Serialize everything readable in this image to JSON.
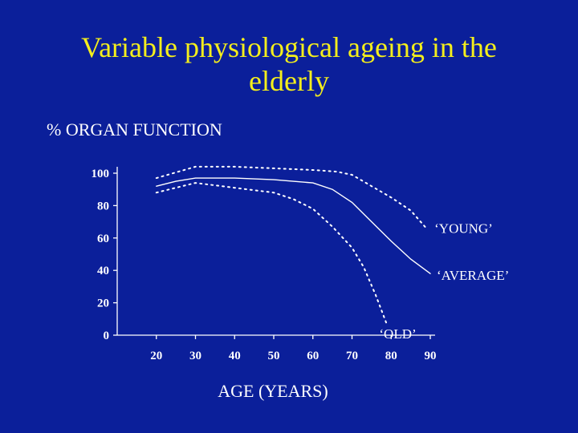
{
  "slide": {
    "title_line1": "Variable physiological ageing in the",
    "title_line2": "elderly"
  },
  "colors": {
    "background": "#0b1f9a",
    "title": "#f4ee1c",
    "text": "#ffffff",
    "lines": "#ffffff"
  },
  "chart_data": {
    "type": "line",
    "title": "",
    "xlabel": "AGE (YEARS)",
    "ylabel": "% ORGAN FUNCTION",
    "xlim": [
      10,
      90
    ],
    "ylim": [
      0,
      100
    ],
    "x_ticks": [
      20,
      30,
      40,
      50,
      60,
      70,
      80,
      90
    ],
    "y_ticks": [
      0,
      20,
      40,
      60,
      80,
      100
    ],
    "grid": false,
    "legend": "none",
    "series": [
      {
        "name": "‘YOUNG’",
        "line_style": "dotted",
        "x": [
          20,
          30,
          40,
          50,
          60,
          66,
          70,
          75,
          80,
          85,
          89
        ],
        "y": [
          97,
          104,
          104,
          103,
          102,
          101,
          99,
          92,
          85,
          77,
          66
        ]
      },
      {
        "name": "‘AVERAGE’",
        "line_style": "solid",
        "x": [
          20,
          25,
          30,
          40,
          50,
          60,
          65,
          70,
          75,
          80,
          85,
          90
        ],
        "y": [
          92,
          95,
          97,
          97,
          96,
          94,
          90,
          82,
          70,
          58,
          47,
          38
        ]
      },
      {
        "name": "‘OLD’",
        "line_style": "dotted",
        "x": [
          20,
          30,
          40,
          50,
          55,
          60,
          65,
          70,
          73,
          76,
          79
        ],
        "y": [
          88,
          94,
          91,
          88,
          84,
          78,
          67,
          54,
          42,
          25,
          6
        ]
      }
    ]
  }
}
